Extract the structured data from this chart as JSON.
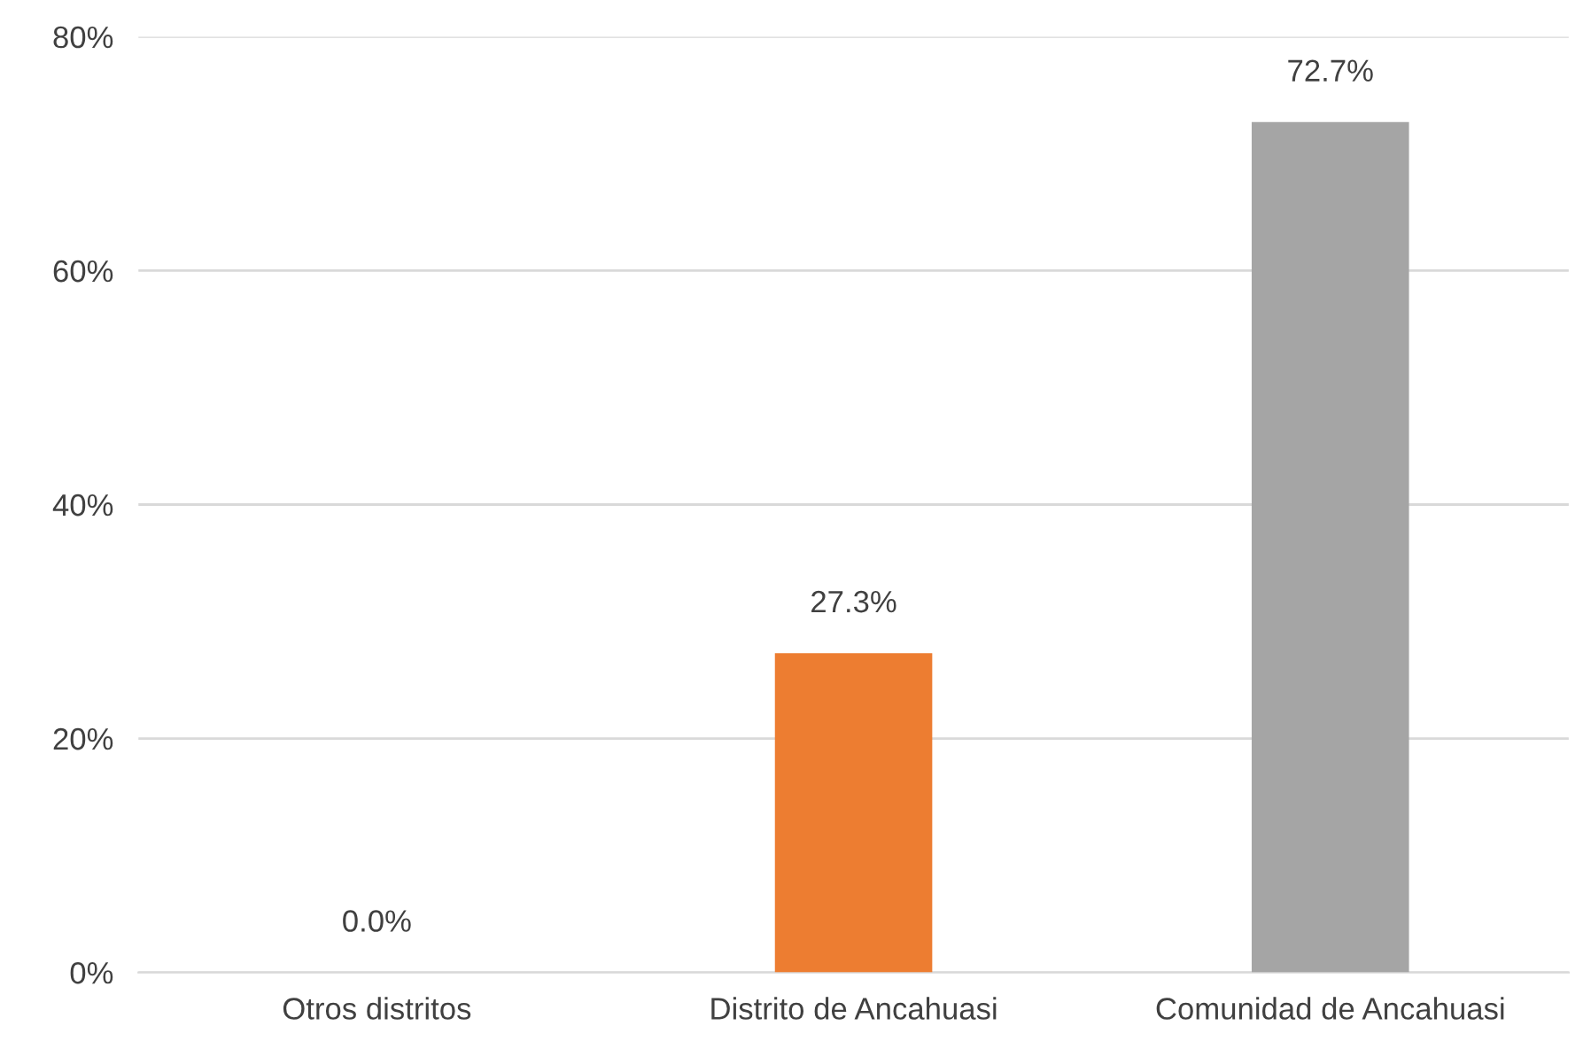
{
  "chart_data": {
    "type": "bar",
    "categories": [
      "Otros distritos",
      "Distrito de Ancahuasi",
      "Comunidad de Ancahuasi"
    ],
    "values": [
      0.0,
      27.3,
      72.7
    ],
    "colors": [
      "#4472c4",
      "#ed7d31",
      "#a5a5a5"
    ],
    "value_labels": [
      "0.0%",
      "27.3%",
      "72.7%"
    ],
    "ylim": [
      0,
      80
    ],
    "yticks": [
      {
        "value": 0,
        "label": "0%"
      },
      {
        "value": 20,
        "label": "20%"
      },
      {
        "value": 40,
        "label": "40%"
      },
      {
        "value": 60,
        "label": "60%"
      },
      {
        "value": 80,
        "label": "80%"
      }
    ],
    "grid": "y"
  }
}
